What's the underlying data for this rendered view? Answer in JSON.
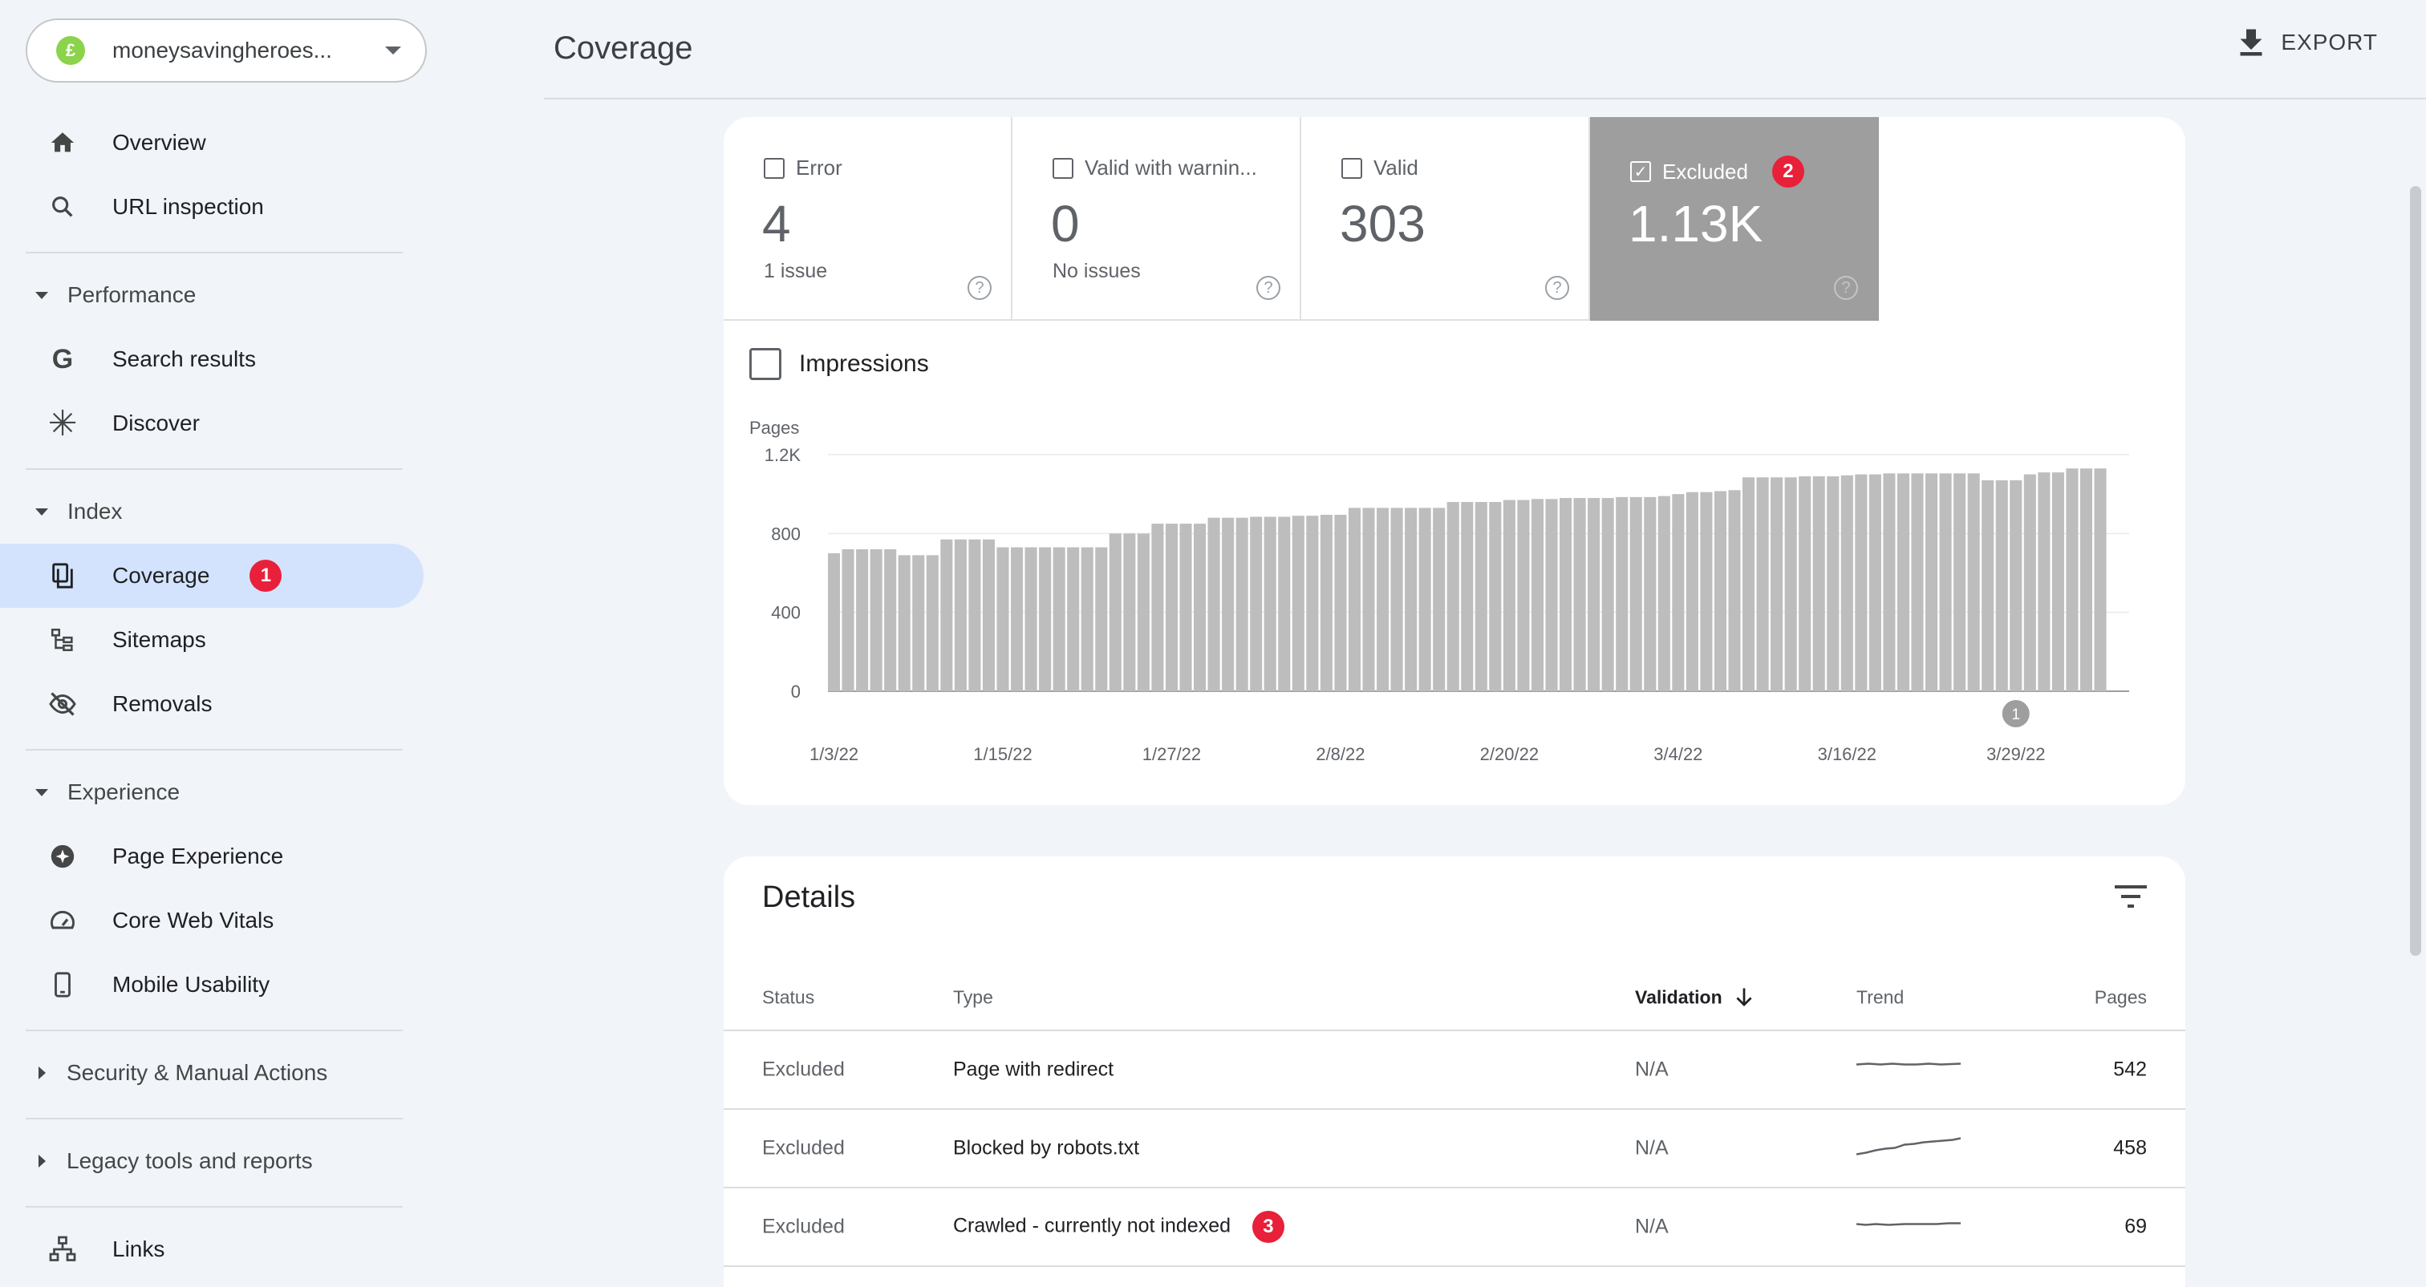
{
  "property": {
    "name": "moneysavingheroes...",
    "favicon_glyph": "£"
  },
  "nav": {
    "overview": "Overview",
    "url_inspection": "URL inspection",
    "performance": "Performance",
    "search_results": "Search results",
    "discover": "Discover",
    "index": "Index",
    "coverage": "Coverage",
    "coverage_badge": "1",
    "sitemaps": "Sitemaps",
    "removals": "Removals",
    "experience": "Experience",
    "page_experience": "Page Experience",
    "core_web_vitals": "Core Web Vitals",
    "mobile_usability": "Mobile Usability",
    "security": "Security & Manual Actions",
    "legacy": "Legacy tools and reports",
    "links": "Links"
  },
  "header": {
    "title": "Coverage",
    "export": "EXPORT"
  },
  "tiles": [
    {
      "label": "Error",
      "value": "4",
      "sub": "1 issue",
      "selected": false
    },
    {
      "label": "Valid with warnin...",
      "value": "0",
      "sub": "No issues",
      "selected": false
    },
    {
      "label": "Valid",
      "value": "303",
      "sub": "",
      "selected": false
    },
    {
      "label": "Excluded",
      "value": "1.13K",
      "sub": "",
      "selected": true,
      "badge": "2"
    }
  ],
  "impressions_label": "Impressions",
  "chart_data": {
    "type": "bar",
    "ylabel": "Pages",
    "ylim": [
      0,
      1200
    ],
    "yticks": [
      "0",
      "400",
      "800",
      "1.2K"
    ],
    "ytick_values": [
      0,
      400,
      800,
      1200
    ],
    "xtick_labels": [
      "1/3/22",
      "1/15/22",
      "1/27/22",
      "2/8/22",
      "2/20/22",
      "3/4/22",
      "3/16/22",
      "3/29/22"
    ],
    "xtick_indices": [
      0,
      12,
      24,
      36,
      48,
      60,
      72,
      84
    ],
    "annotation": {
      "label": "1",
      "index": 84
    },
    "color": "#bdbdbd",
    "values": [
      700,
      720,
      720,
      720,
      720,
      690,
      690,
      690,
      770,
      770,
      770,
      770,
      730,
      730,
      730,
      730,
      730,
      730,
      730,
      730,
      800,
      800,
      800,
      850,
      850,
      850,
      850,
      880,
      880,
      880,
      885,
      885,
      885,
      890,
      890,
      895,
      895,
      930,
      930,
      930,
      930,
      930,
      930,
      930,
      960,
      960,
      960,
      960,
      970,
      970,
      975,
      975,
      980,
      980,
      980,
      980,
      985,
      985,
      985,
      990,
      1000,
      1010,
      1010,
      1015,
      1020,
      1085,
      1085,
      1085,
      1085,
      1090,
      1090,
      1090,
      1095,
      1100,
      1100,
      1105,
      1105,
      1105,
      1105,
      1105,
      1105,
      1105,
      1070,
      1070,
      1070,
      1100,
      1110,
      1110,
      1130,
      1130,
      1130
    ]
  },
  "details": {
    "title": "Details",
    "columns": {
      "status": "Status",
      "type": "Type",
      "validation": "Validation",
      "trend": "Trend",
      "pages": "Pages"
    },
    "rows": [
      {
        "status": "Excluded",
        "type": "Page with redirect",
        "validation": "N/A",
        "pages": "542"
      },
      {
        "status": "Excluded",
        "type": "Blocked by robots.txt",
        "validation": "N/A",
        "pages": "458"
      },
      {
        "status": "Excluded",
        "type": "Crawled - currently not indexed",
        "validation": "N/A",
        "pages": "69",
        "badge": "3"
      }
    ]
  }
}
